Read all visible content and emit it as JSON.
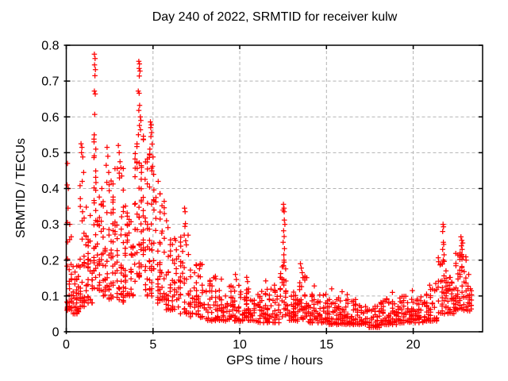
{
  "chart_data": {
    "type": "scatter",
    "title": "Day 240 of 2022, SRMTID for receiver kulw",
    "xlabel": "GPS time / hours",
    "ylabel": "SRMTID / TECUs",
    "xlim": [
      0,
      24
    ],
    "ylim": [
      0,
      0.8
    ],
    "xticks": [
      0,
      5,
      10,
      15,
      20
    ],
    "yticks": [
      0,
      0.1,
      0.2,
      0.3,
      0.4,
      0.5,
      0.6,
      0.7,
      0.8
    ],
    "grid": true,
    "legend": "none",
    "marker": "plus",
    "colors": {
      "points": "#ff0000",
      "grid": "#b3b3b3",
      "axis": "#000000",
      "text": "#000000",
      "background": "#ffffff"
    },
    "segment_fields": [
      "t_start",
      "t_end",
      "n_points",
      "y_min",
      "y_max",
      "density_bias"
    ],
    "density_segments": [
      [
        0.0,
        0.35,
        32,
        0.06,
        0.28,
        1.9
      ],
      [
        0.35,
        0.75,
        34,
        0.05,
        0.2,
        1.8
      ],
      [
        0.75,
        1.2,
        40,
        0.07,
        0.42,
        1.9
      ],
      [
        1.2,
        1.55,
        30,
        0.08,
        0.33,
        1.8
      ],
      [
        1.55,
        1.85,
        34,
        0.12,
        0.55,
        1.5
      ],
      [
        1.85,
        2.3,
        40,
        0.1,
        0.42,
        1.9
      ],
      [
        2.3,
        2.75,
        40,
        0.09,
        0.44,
        1.9
      ],
      [
        2.75,
        3.35,
        50,
        0.08,
        0.46,
        2.0
      ],
      [
        3.35,
        3.9,
        45,
        0.1,
        0.38,
        1.8
      ],
      [
        3.9,
        4.5,
        62,
        0.14,
        0.55,
        1.4
      ],
      [
        4.5,
        5.1,
        56,
        0.1,
        0.5,
        1.7
      ],
      [
        5.1,
        5.7,
        45,
        0.08,
        0.4,
        2.0
      ],
      [
        5.7,
        6.3,
        42,
        0.06,
        0.3,
        2.0
      ],
      [
        6.3,
        7.1,
        45,
        0.05,
        0.28,
        2.0
      ],
      [
        7.1,
        7.9,
        48,
        0.04,
        0.2,
        2.0
      ],
      [
        7.9,
        9.0,
        60,
        0.03,
        0.155,
        1.9
      ],
      [
        9.0,
        10.0,
        60,
        0.03,
        0.13,
        1.9
      ],
      [
        10.0,
        11.0,
        62,
        0.03,
        0.12,
        1.9
      ],
      [
        11.0,
        12.3,
        76,
        0.025,
        0.12,
        1.9
      ],
      [
        12.3,
        12.8,
        30,
        0.04,
        0.2,
        1.6
      ],
      [
        12.8,
        13.4,
        40,
        0.03,
        0.12,
        1.9
      ],
      [
        13.4,
        13.9,
        32,
        0.035,
        0.155,
        1.8
      ],
      [
        13.9,
        15.0,
        66,
        0.025,
        0.105,
        1.9
      ],
      [
        15.0,
        16.5,
        92,
        0.02,
        0.095,
        1.8
      ],
      [
        16.5,
        17.3,
        52,
        0.02,
        0.09,
        1.8
      ],
      [
        17.3,
        18.1,
        50,
        0.012,
        0.075,
        1.7
      ],
      [
        18.1,
        19.3,
        76,
        0.02,
        0.095,
        1.8
      ],
      [
        19.3,
        20.6,
        82,
        0.025,
        0.1,
        1.8
      ],
      [
        20.6,
        21.4,
        52,
        0.03,
        0.12,
        1.7
      ],
      [
        21.4,
        21.95,
        36,
        0.05,
        0.21,
        1.6
      ],
      [
        21.95,
        22.4,
        36,
        0.05,
        0.16,
        1.7
      ],
      [
        22.4,
        23.1,
        56,
        0.06,
        0.22,
        1.5
      ],
      [
        23.1,
        23.4,
        18,
        0.05,
        0.145,
        1.5
      ]
    ],
    "peak_point_fields": [
      "t",
      "y"
    ],
    "peak_points": [
      [
        0.07,
        0.47
      ],
      [
        0.05,
        0.41
      ],
      [
        0.12,
        0.4
      ],
      [
        0.1,
        0.345
      ],
      [
        0.07,
        0.305
      ],
      [
        0.2,
        0.3
      ],
      [
        0.85,
        0.525
      ],
      [
        0.9,
        0.515
      ],
      [
        0.88,
        0.5
      ],
      [
        0.95,
        0.488
      ],
      [
        1.0,
        0.445
      ],
      [
        0.92,
        0.42
      ],
      [
        1.62,
        0.775
      ],
      [
        1.66,
        0.763
      ],
      [
        1.63,
        0.745
      ],
      [
        1.68,
        0.732
      ],
      [
        1.65,
        0.715
      ],
      [
        1.62,
        0.672
      ],
      [
        1.67,
        0.664
      ],
      [
        1.64,
        0.607
      ],
      [
        1.6,
        0.53
      ],
      [
        1.7,
        0.51
      ],
      [
        2.05,
        0.4
      ],
      [
        2.35,
        0.515
      ],
      [
        2.4,
        0.49
      ],
      [
        2.3,
        0.465
      ],
      [
        2.45,
        0.445
      ],
      [
        3.0,
        0.52
      ],
      [
        3.05,
        0.5
      ],
      [
        3.1,
        0.475
      ],
      [
        3.15,
        0.458
      ],
      [
        3.2,
        0.435
      ],
      [
        4.18,
        0.755
      ],
      [
        4.22,
        0.748
      ],
      [
        4.2,
        0.735
      ],
      [
        4.25,
        0.728
      ],
      [
        4.21,
        0.714
      ],
      [
        4.15,
        0.672
      ],
      [
        4.2,
        0.666
      ],
      [
        4.23,
        0.632
      ],
      [
        4.18,
        0.618
      ],
      [
        4.27,
        0.6
      ],
      [
        4.3,
        0.59
      ],
      [
        4.22,
        0.576
      ],
      [
        4.28,
        0.564
      ],
      [
        4.16,
        0.55
      ],
      [
        4.85,
        0.586
      ],
      [
        4.9,
        0.578
      ],
      [
        4.87,
        0.57
      ],
      [
        4.92,
        0.556
      ],
      [
        4.88,
        0.545
      ],
      [
        4.95,
        0.524
      ],
      [
        4.82,
        0.51
      ],
      [
        5.0,
        0.488
      ],
      [
        4.97,
        0.462
      ],
      [
        5.3,
        0.42
      ],
      [
        5.4,
        0.385
      ],
      [
        5.52,
        0.352
      ],
      [
        5.65,
        0.33
      ],
      [
        5.78,
        0.31
      ],
      [
        6.3,
        0.255
      ],
      [
        6.82,
        0.345
      ],
      [
        6.85,
        0.335
      ],
      [
        6.87,
        0.302
      ],
      [
        6.84,
        0.294
      ],
      [
        6.8,
        0.27
      ],
      [
        6.88,
        0.254
      ],
      [
        7.72,
        0.19
      ],
      [
        7.68,
        0.176
      ],
      [
        8.6,
        0.155
      ],
      [
        9.75,
        0.16
      ],
      [
        9.8,
        0.146
      ],
      [
        10.4,
        0.152
      ],
      [
        10.45,
        0.14
      ],
      [
        11.5,
        0.142
      ],
      [
        12.0,
        0.13
      ],
      [
        12.52,
        0.356
      ],
      [
        12.55,
        0.345
      ],
      [
        12.5,
        0.34
      ],
      [
        12.56,
        0.335
      ],
      [
        12.57,
        0.312
      ],
      [
        12.6,
        0.3
      ],
      [
        12.53,
        0.282
      ],
      [
        12.56,
        0.266
      ],
      [
        12.5,
        0.25
      ],
      [
        12.58,
        0.232
      ],
      [
        12.54,
        0.215
      ],
      [
        12.55,
        0.2
      ],
      [
        12.52,
        0.185
      ],
      [
        13.5,
        0.19
      ],
      [
        13.55,
        0.178
      ],
      [
        13.6,
        0.165
      ],
      [
        13.75,
        0.15
      ],
      [
        14.3,
        0.128
      ],
      [
        15.3,
        0.12
      ],
      [
        15.9,
        0.112
      ],
      [
        16.2,
        0.104
      ],
      [
        18.8,
        0.11
      ],
      [
        19.95,
        0.115
      ],
      [
        20.95,
        0.13
      ],
      [
        21.3,
        0.135
      ],
      [
        21.72,
        0.3
      ],
      [
        21.75,
        0.293
      ],
      [
        21.7,
        0.28
      ],
      [
        21.74,
        0.25
      ],
      [
        21.76,
        0.244
      ],
      [
        21.7,
        0.23
      ],
      [
        21.78,
        0.215
      ],
      [
        21.73,
        0.2
      ],
      [
        21.68,
        0.19
      ],
      [
        22.75,
        0.265
      ],
      [
        22.8,
        0.255
      ],
      [
        22.85,
        0.248
      ],
      [
        22.78,
        0.24
      ],
      [
        22.82,
        0.23
      ],
      [
        22.7,
        0.22
      ],
      [
        22.88,
        0.21
      ],
      [
        23.2,
        0.16
      ],
      [
        23.3,
        0.12
      ]
    ]
  }
}
